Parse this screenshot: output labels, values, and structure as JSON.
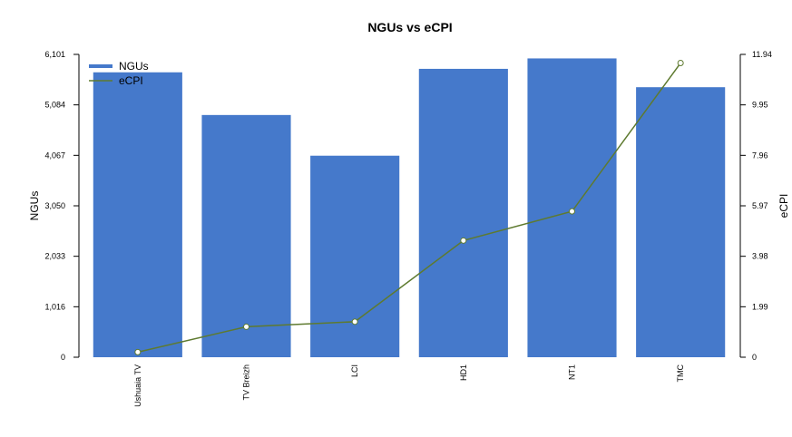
{
  "chart_data": {
    "type": "bar",
    "title": "NGUs vs eCPI",
    "categories": [
      "Ushuaia TV",
      "TV Breizh",
      "LCI",
      "HD1",
      "NT1",
      "TMC"
    ],
    "series": [
      {
        "name": "NGUs",
        "type": "bar",
        "axis": "left",
        "color": "#4579cb",
        "values": [
          5740,
          4880,
          4060,
          5810,
          6020,
          5440
        ]
      },
      {
        "name": "eCPI",
        "type": "line",
        "axis": "right",
        "color": "#5e7a2f",
        "values": [
          0.2,
          1.2,
          1.4,
          4.6,
          5.75,
          11.6
        ]
      }
    ],
    "ylabel": "NGUs",
    "y2label": "eCPI",
    "ylim": [
      0,
      6101
    ],
    "y2lim": [
      0,
      11.94
    ],
    "yticks": [
      "0",
      "1,016",
      "2,033",
      "3,050",
      "4,067",
      "5,084",
      "6,101"
    ],
    "y2ticks": [
      "0",
      "1.99",
      "3.98",
      "5.97",
      "7.96",
      "9.95",
      "11.94"
    ],
    "legend": {
      "position": "top-left",
      "entries": [
        "NGUs",
        "eCPI"
      ]
    },
    "grid": false
  }
}
